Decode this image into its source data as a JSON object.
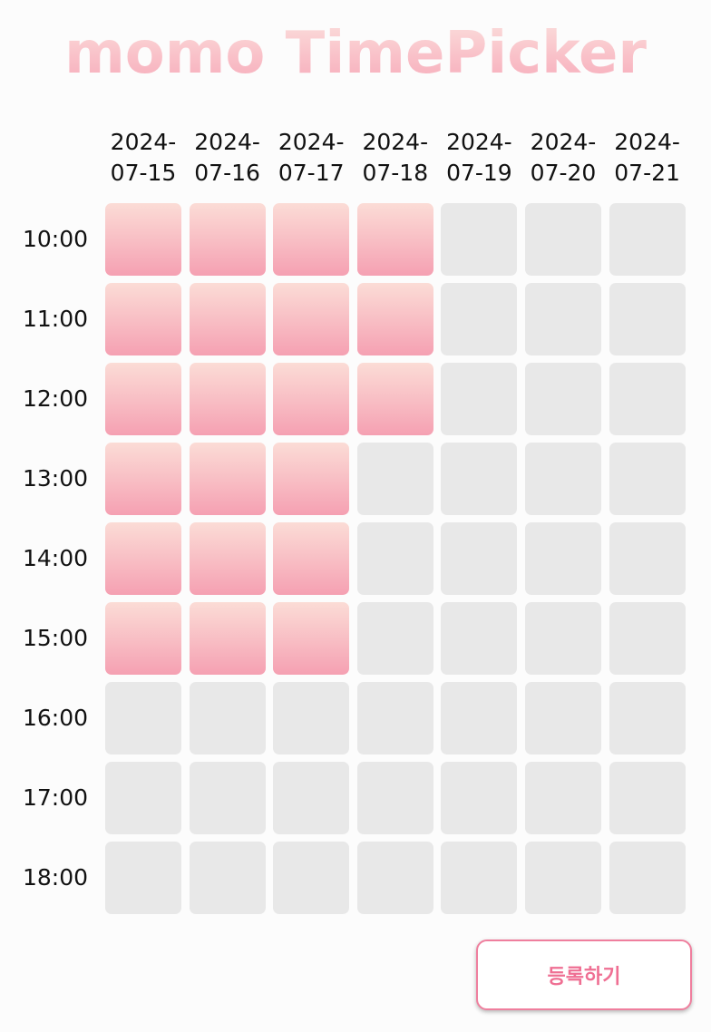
{
  "title": "momo TimePicker",
  "days": [
    {
      "line1": "2024-",
      "line2": "07-15"
    },
    {
      "line1": "2024-",
      "line2": "07-16"
    },
    {
      "line1": "2024-",
      "line2": "07-17"
    },
    {
      "line1": "2024-",
      "line2": "07-18"
    },
    {
      "line1": "2024-",
      "line2": "07-19"
    },
    {
      "line1": "2024-",
      "line2": "07-20"
    },
    {
      "line1": "2024-",
      "line2": "07-21"
    }
  ],
  "times": [
    "10:00",
    "11:00",
    "12:00",
    "13:00",
    "14:00",
    "15:00",
    "16:00",
    "17:00",
    "18:00"
  ],
  "selected": [
    [
      true,
      true,
      true,
      true,
      false,
      false,
      false
    ],
    [
      true,
      true,
      true,
      true,
      false,
      false,
      false
    ],
    [
      true,
      true,
      true,
      true,
      false,
      false,
      false
    ],
    [
      true,
      true,
      true,
      false,
      false,
      false,
      false
    ],
    [
      true,
      true,
      true,
      false,
      false,
      false,
      false
    ],
    [
      true,
      true,
      true,
      false,
      false,
      false,
      false
    ],
    [
      false,
      false,
      false,
      false,
      false,
      false,
      false
    ],
    [
      false,
      false,
      false,
      false,
      false,
      false,
      false
    ],
    [
      false,
      false,
      false,
      false,
      false,
      false,
      false
    ]
  ],
  "submit_label": "등록하기",
  "colors": {
    "selected": "#f8bcc3",
    "unselected": "#e8e8e8",
    "accent": "#ef7f9e"
  }
}
